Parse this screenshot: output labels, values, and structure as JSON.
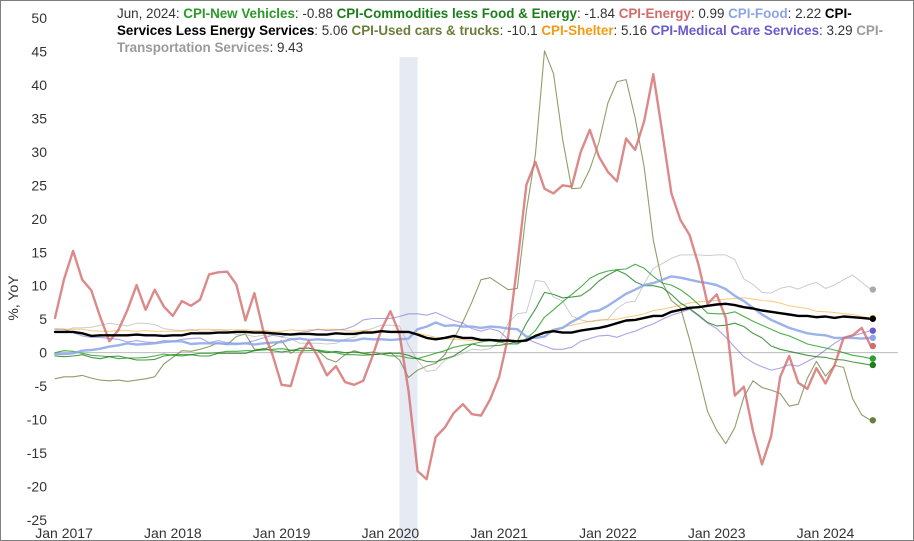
{
  "chart_data": {
    "type": "line",
    "legend": {
      "date_label": "Jun, 2024:",
      "placement": "top"
    },
    "ylabel": "%, YoY",
    "ylim": [
      -25,
      50
    ],
    "y_ticks": [
      "50",
      "45",
      "40",
      "35",
      "30",
      "25",
      "20",
      "15",
      "10",
      "5",
      "0",
      "-5",
      "-10",
      "-15",
      "-20",
      "-25"
    ],
    "x_ticks": [
      "Jan 2017",
      "Jan 2018",
      "Jan 2019",
      "Jan 2020",
      "Jan 2021",
      "Jan 2022",
      "Jan 2023",
      "Jan 2024"
    ],
    "xlim": [
      "2016-12",
      "2024-09"
    ],
    "grid": false,
    "recession_band": {
      "start": "2020-02",
      "end": "2020-04"
    },
    "x": [
      "2016-12",
      "2017-01",
      "2017-02",
      "2017-03",
      "2017-04",
      "2017-05",
      "2017-06",
      "2017-07",
      "2017-08",
      "2017-09",
      "2017-10",
      "2017-11",
      "2017-12",
      "2018-01",
      "2018-02",
      "2018-03",
      "2018-04",
      "2018-05",
      "2018-06",
      "2018-07",
      "2018-08",
      "2018-09",
      "2018-10",
      "2018-11",
      "2018-12",
      "2019-01",
      "2019-02",
      "2019-03",
      "2019-04",
      "2019-05",
      "2019-06",
      "2019-07",
      "2019-08",
      "2019-09",
      "2019-10",
      "2019-11",
      "2019-12",
      "2020-01",
      "2020-02",
      "2020-03",
      "2020-04",
      "2020-05",
      "2020-06",
      "2020-07",
      "2020-08",
      "2020-09",
      "2020-10",
      "2020-11",
      "2020-12",
      "2021-01",
      "2021-02",
      "2021-03",
      "2021-04",
      "2021-05",
      "2021-06",
      "2021-07",
      "2021-08",
      "2021-09",
      "2021-10",
      "2021-11",
      "2021-12",
      "2022-01",
      "2022-02",
      "2022-03",
      "2022-04",
      "2022-05",
      "2022-06",
      "2022-07",
      "2022-08",
      "2022-09",
      "2022-10",
      "2022-11",
      "2022-12",
      "2023-01",
      "2023-02",
      "2023-03",
      "2023-04",
      "2023-05",
      "2023-06",
      "2023-07",
      "2023-08",
      "2023-09",
      "2023-10",
      "2023-11",
      "2023-12",
      "2024-01",
      "2024-02",
      "2024-03",
      "2024-04",
      "2024-05",
      "2024-06"
    ],
    "series": [
      {
        "name": "CPI-New Vehicles",
        "latest": "-0.88",
        "color": "#2ca02c",
        "values": [
          0.0,
          0.3,
          0.2,
          -0.1,
          -0.4,
          -0.5,
          -0.6,
          -0.9,
          -0.8,
          -0.8,
          -0.7,
          -0.5,
          -0.2,
          -0.4,
          -0.5,
          -0.3,
          -0.1,
          -0.1,
          0.0,
          0.2,
          0.2,
          0.3,
          0.3,
          0.4,
          0.5,
          0.6,
          0.4,
          0.3,
          0.3,
          0.4,
          0.2,
          0.0,
          -0.3,
          -0.3,
          -0.4,
          -0.3,
          -0.2,
          -0.5,
          -0.5,
          -0.8,
          -0.9,
          -0.5,
          -0.1,
          0.3,
          0.8,
          1.1,
          1.3,
          1.6,
          1.8,
          1.6,
          1.3,
          1.3,
          2.1,
          3.3,
          5.3,
          6.4,
          7.6,
          8.7,
          9.8,
          11.1,
          11.8,
          12.2,
          12.4,
          12.5,
          13.2,
          12.6,
          11.4,
          10.4,
          10.1,
          9.4,
          8.4,
          7.2,
          5.9,
          5.8,
          5.8,
          6.1,
          5.4,
          4.7,
          4.1,
          3.5,
          2.9,
          2.5,
          1.9,
          1.3,
          1.0,
          0.7,
          0.4,
          0.0,
          -0.4,
          -0.6,
          -0.88
        ],
        "width": 1.1,
        "opacity": 0.85
      },
      {
        "name": "CPI-Commodities less Food & Energy",
        "latest": "-1.84",
        "color": "#1b7e1b",
        "values": [
          -0.5,
          -0.6,
          -0.5,
          -0.3,
          -0.7,
          -0.9,
          -0.6,
          -0.5,
          -0.8,
          -1.1,
          -1.1,
          -1.0,
          -0.5,
          -0.3,
          -0.3,
          -0.3,
          -0.5,
          -0.5,
          -0.1,
          -0.1,
          -0.1,
          -0.1,
          0.3,
          0.6,
          0.3,
          0.1,
          0.3,
          0.6,
          0.7,
          0.3,
          0.0,
          0.2,
          0.0,
          0.1,
          -0.1,
          -0.3,
          -0.2,
          -0.1,
          -0.1,
          -0.4,
          -0.9,
          -1.3,
          -1.4,
          -0.9,
          -0.5,
          0.4,
          1.3,
          1.0,
          1.0,
          1.1,
          1.3,
          1.7,
          4.4,
          6.5,
          9.0,
          8.7,
          8.2,
          8.3,
          8.5,
          9.4,
          10.7,
          11.6,
          12.3,
          11.7,
          10.6,
          10.0,
          10.0,
          9.7,
          8.7,
          7.4,
          6.6,
          5.6,
          4.5,
          4.0,
          4.1,
          4.4,
          3.9,
          2.9,
          2.2,
          1.0,
          0.5,
          0.2,
          -0.1,
          -0.4,
          -0.6,
          -0.7,
          -1.0,
          -1.1,
          -1.4,
          -1.6,
          -1.84
        ],
        "width": 1.1,
        "opacity": 0.8
      },
      {
        "name": "CPI-Energy",
        "latest": "0.99",
        "color": "#d36b6b",
        "values": [
          5.2,
          11.0,
          15.2,
          10.9,
          9.3,
          5.3,
          1.7,
          3.4,
          6.4,
          10.1,
          6.4,
          9.4,
          6.9,
          5.5,
          7.7,
          7.0,
          7.9,
          11.7,
          12.0,
          12.1,
          10.2,
          4.8,
          8.9,
          3.1,
          -0.3,
          -4.8,
          -5.0,
          -0.4,
          1.7,
          -0.6,
          -3.4,
          -2.0,
          -4.4,
          -4.8,
          -4.2,
          -0.6,
          3.4,
          6.2,
          2.8,
          -5.7,
          -17.7,
          -18.9,
          -12.6,
          -11.2,
          -9.0,
          -7.7,
          -9.2,
          -9.4,
          -7.0,
          -3.6,
          2.4,
          13.2,
          25.1,
          28.5,
          24.5,
          23.8,
          25.0,
          24.8,
          30.0,
          33.3,
          29.3,
          27.0,
          25.6,
          32.0,
          30.3,
          34.6,
          41.6,
          32.9,
          23.8,
          19.8,
          17.6,
          13.1,
          7.3,
          8.7,
          5.2,
          -6.4,
          -5.1,
          -11.7,
          -16.7,
          -12.5,
          -3.6,
          -0.5,
          -4.5,
          -5.4,
          -2.3,
          -4.6,
          -1.9,
          2.2,
          2.6,
          3.7,
          0.99
        ],
        "width": 2.4,
        "opacity": 0.8
      },
      {
        "name": "CPI-Food",
        "latest": "2.22",
        "color": "#8aa6e8",
        "values": [
          -0.2,
          -0.2,
          -0.1,
          0.3,
          0.4,
          0.6,
          0.9,
          1.1,
          1.4,
          1.2,
          1.3,
          1.4,
          1.6,
          1.7,
          1.7,
          1.3,
          1.4,
          1.4,
          1.4,
          1.3,
          1.3,
          1.4,
          1.2,
          1.4,
          1.5,
          1.6,
          2.0,
          2.1,
          1.9,
          2.0,
          1.9,
          1.8,
          1.8,
          1.8,
          2.1,
          2.0,
          2.0,
          1.9,
          2.0,
          2.1,
          3.5,
          3.9,
          4.5,
          4.0,
          4.1,
          3.9,
          3.9,
          3.7,
          3.9,
          3.8,
          3.6,
          3.5,
          2.4,
          2.2,
          2.4,
          3.4,
          3.7,
          4.6,
          5.3,
          6.1,
          6.3,
          7.0,
          7.9,
          8.8,
          9.4,
          10.1,
          10.4,
          10.9,
          11.4,
          11.2,
          10.9,
          10.6,
          10.4,
          10.1,
          9.5,
          8.5,
          7.7,
          6.7,
          5.7,
          4.9,
          4.3,
          3.7,
          3.3,
          2.9,
          2.7,
          2.6,
          2.2,
          2.2,
          2.2,
          2.1,
          2.22
        ],
        "width": 2.4,
        "opacity": 0.85
      },
      {
        "name": "CPI-Services Less Energy Services",
        "latest": "5.06",
        "color": "#000000",
        "values": [
          3.1,
          3.1,
          3.1,
          2.9,
          2.5,
          2.6,
          2.6,
          2.6,
          2.6,
          2.7,
          2.6,
          2.6,
          2.5,
          2.6,
          2.6,
          2.9,
          2.9,
          2.9,
          3.0,
          3.0,
          3.1,
          3.1,
          3.0,
          3.0,
          2.9,
          2.8,
          2.7,
          2.8,
          2.8,
          2.7,
          2.7,
          2.9,
          2.8,
          2.8,
          3.0,
          3.0,
          3.2,
          3.1,
          3.1,
          3.1,
          2.7,
          2.2,
          2.0,
          2.2,
          2.5,
          2.2,
          2.2,
          1.9,
          1.9,
          1.8,
          1.8,
          1.7,
          1.8,
          2.5,
          3.0,
          3.2,
          3.0,
          3.0,
          3.3,
          3.5,
          3.7,
          4.0,
          4.4,
          4.8,
          4.9,
          5.2,
          5.5,
          5.5,
          6.1,
          6.4,
          6.7,
          6.8,
          7.0,
          7.2,
          7.3,
          7.1,
          6.8,
          6.6,
          6.3,
          6.1,
          5.9,
          5.7,
          5.5,
          5.5,
          5.3,
          5.4,
          5.2,
          5.4,
          5.3,
          5.2,
          5.06
        ],
        "width": 2.4,
        "opacity": 1
      },
      {
        "name": "CPI-Used cars & trucks",
        "latest": "-10.1",
        "color": "#6b7d3a",
        "values": [
          -3.9,
          -3.6,
          -3.6,
          -3.4,
          -3.8,
          -4.1,
          -4.2,
          -4.1,
          -4.3,
          -4.1,
          -3.9,
          -3.6,
          -1.7,
          -0.7,
          0.3,
          0.2,
          0.5,
          0.9,
          1.5,
          1.2,
          2.4,
          2.8,
          0.5,
          0.5,
          1.0,
          1.8,
          -0.1,
          0.7,
          0.7,
          0.3,
          -0.9,
          -1.4,
          -0.3,
          0.3,
          -0.1,
          0.1,
          -0.2,
          0.0,
          -1.1,
          -3.7,
          -2.6,
          -2.0,
          -1.6,
          -0.3,
          2.1,
          4.6,
          7.6,
          10.9,
          11.2,
          10.3,
          9.4,
          9.6,
          21.2,
          29.6,
          45.1,
          41.7,
          31.9,
          24.5,
          24.6,
          27.4,
          31.4,
          37.3,
          40.5,
          40.8,
          35.1,
          27.7,
          16.8,
          10.5,
          7.8,
          6.7,
          2.0,
          -3.3,
          -8.8,
          -11.6,
          -13.6,
          -11.2,
          -6.6,
          -4.2,
          -5.2,
          -5.6,
          -6.1,
          -8.0,
          -7.7,
          -3.8,
          -1.3,
          -3.5,
          -1.9,
          -2.2,
          -6.9,
          -9.3,
          -10.1
        ],
        "width": 1.1,
        "opacity": 0.75
      },
      {
        "name": "CPI-Shelter",
        "latest": "5.16",
        "color": "#f39c12",
        "values": [
          3.6,
          3.5,
          3.5,
          3.5,
          3.3,
          3.2,
          3.2,
          3.3,
          3.3,
          3.2,
          3.3,
          3.2,
          3.2,
          3.2,
          3.2,
          3.3,
          3.5,
          3.5,
          3.4,
          3.4,
          3.4,
          3.4,
          3.3,
          3.3,
          3.2,
          3.2,
          3.4,
          3.3,
          3.4,
          3.4,
          3.5,
          3.5,
          3.3,
          3.2,
          3.3,
          3.2,
          3.3,
          3.2,
          3.3,
          3.1,
          2.9,
          2.6,
          2.3,
          2.1,
          2.0,
          1.9,
          1.8,
          1.8,
          1.8,
          1.6,
          1.7,
          1.8,
          2.0,
          2.4,
          3.0,
          3.5,
          3.8,
          4.1,
          4.4,
          4.7,
          4.9,
          4.9,
          5.0,
          5.3,
          5.5,
          5.8,
          6.3,
          6.5,
          6.8,
          7.1,
          7.4,
          7.6,
          7.7,
          7.8,
          8.0,
          8.1,
          8.2,
          8.0,
          7.8,
          7.7,
          7.4,
          7.0,
          6.8,
          6.6,
          6.2,
          6.1,
          6.0,
          5.8,
          5.7,
          5.4,
          5.16
        ],
        "width": 1.0,
        "opacity": 0.55
      },
      {
        "name": "CPI-Medical Care Services",
        "latest": "3.29",
        "color": "#6a5acd",
        "values": [
          3.5,
          3.5,
          3.0,
          2.5,
          2.3,
          2.3,
          2.1,
          2.0,
          1.6,
          1.8,
          1.6,
          1.5,
          1.8,
          1.7,
          2.0,
          2.1,
          2.2,
          1.5,
          1.8,
          1.5,
          1.4,
          1.4,
          1.8,
          2.2,
          2.6,
          2.4,
          2.8,
          3.0,
          3.2,
          3.5,
          3.3,
          3.4,
          3.5,
          4.0,
          4.9,
          5.1,
          5.1,
          5.1,
          5.4,
          5.8,
          5.8,
          5.6,
          6.0,
          5.4,
          4.8,
          4.4,
          3.6,
          3.2,
          3.6,
          3.2,
          2.0,
          1.3,
          2.1,
          1.5,
          1.0,
          0.5,
          0.5,
          0.8,
          1.7,
          2.1,
          2.5,
          2.6,
          2.3,
          2.8,
          3.2,
          3.8,
          4.3,
          5.0,
          5.6,
          6.0,
          6.5,
          5.5,
          4.4,
          3.6,
          2.3,
          0.8,
          -0.6,
          -1.5,
          -2.1,
          -2.6,
          -2.3,
          -1.8,
          -2.0,
          -1.3,
          -0.6,
          0.4,
          1.4,
          2.2,
          2.5,
          2.9,
          3.29
        ],
        "width": 1.1,
        "opacity": 0.55
      },
      {
        "name": "CPI-Transportation Services",
        "latest": "9.43",
        "color": "#aaaaaa",
        "values": [
          3.2,
          3.2,
          3.7,
          3.7,
          3.8,
          4.1,
          4.4,
          4.2,
          4.0,
          4.4,
          4.4,
          4.2,
          3.6,
          3.4,
          3.3,
          3.5,
          3.2,
          3.2,
          3.4,
          3.3,
          2.7,
          2.7,
          2.4,
          2.6,
          2.7,
          2.3,
          2.1,
          1.4,
          1.4,
          1.4,
          1.3,
          1.4,
          2.0,
          2.3,
          3.3,
          3.6,
          4.1,
          4.1,
          4.0,
          1.1,
          -1.2,
          -2.8,
          -2.6,
          -1.1,
          -0.6,
          -0.1,
          0.5,
          0.4,
          0.6,
          1.6,
          4.4,
          5.8,
          6.0,
          10.8,
          10.6,
          8.3,
          7.7,
          5.5,
          4.9,
          4.6,
          4.8,
          5.0,
          6.6,
          7.5,
          7.7,
          10.3,
          12.6,
          13.3,
          14.1,
          14.6,
          14.6,
          14.6,
          14.5,
          14.6,
          14.6,
          13.9,
          11.0,
          10.2,
          9.0,
          8.9,
          9.6,
          9.9,
          9.5,
          10.1,
          10.5,
          9.6,
          10.1,
          10.9,
          11.6,
          10.5,
          9.43
        ],
        "width": 1.0,
        "opacity": 0.6
      }
    ]
  },
  "legend_order": [
    0,
    1,
    2,
    3,
    4,
    5,
    6,
    7,
    8
  ],
  "end_dots_order": [
    8,
    6,
    4,
    7,
    3,
    2,
    0,
    1,
    5
  ]
}
